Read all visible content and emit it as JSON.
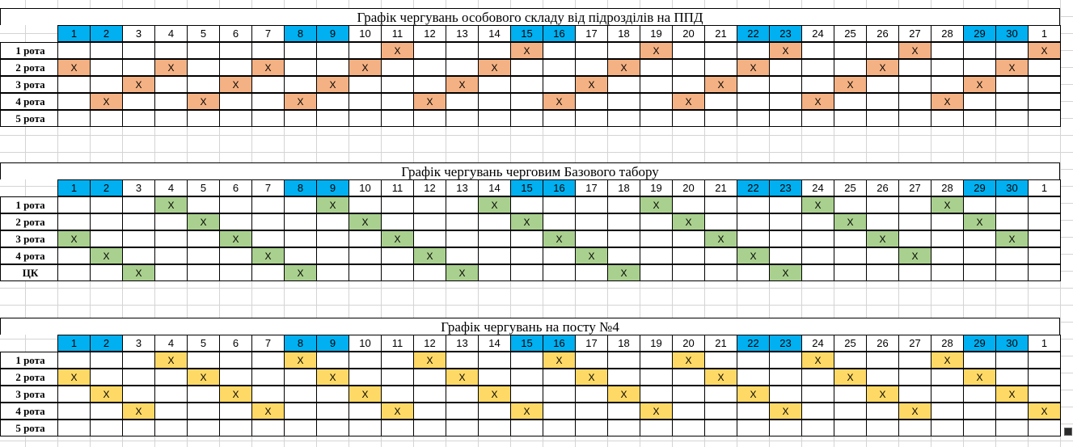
{
  "days": [
    "1",
    "2",
    "3",
    "4",
    "5",
    "6",
    "7",
    "8",
    "9",
    "10",
    "11",
    "12",
    "13",
    "14",
    "15",
    "16",
    "17",
    "18",
    "19",
    "20",
    "21",
    "22",
    "23",
    "24",
    "25",
    "26",
    "27",
    "28",
    "29",
    "30",
    "1"
  ],
  "weekend_columns": [
    0,
    1,
    7,
    8,
    14,
    15,
    21,
    22,
    28,
    29
  ],
  "colors": {
    "weekend_header": "#00b0f0",
    "orange": "#f4b183",
    "green": "#a9d08e",
    "yellow": "#ffd966",
    "grid": "#d4d4d4",
    "border": "#000000"
  },
  "mark": "X",
  "tables": [
    {
      "title": "Графік чергувань особового складу від підрозділів на ППД",
      "mark_color": "orange",
      "rows": [
        {
          "label": "1 рота",
          "marks": [
            10,
            14,
            18,
            22,
            26,
            30
          ]
        },
        {
          "label": "2 рота",
          "marks": [
            0,
            3,
            6,
            9,
            13,
            17,
            21,
            25,
            29
          ]
        },
        {
          "label": "3 рота",
          "marks": [
            2,
            5,
            8,
            12,
            16,
            20,
            24,
            28
          ]
        },
        {
          "label": "4 рота",
          "marks": [
            1,
            4,
            7,
            11,
            15,
            19,
            23,
            27
          ]
        },
        {
          "label": "5 рота",
          "marks": []
        }
      ]
    },
    {
      "title": "Графік чергувань черговим Базового табору",
      "mark_color": "green",
      "rows": [
        {
          "label": "1 рота",
          "marks": [
            3,
            8,
            13,
            18,
            23,
            27
          ]
        },
        {
          "label": "2 рота",
          "marks": [
            4,
            9,
            14,
            19,
            24,
            28
          ]
        },
        {
          "label": "3 рота",
          "marks": [
            0,
            5,
            10,
            15,
            20,
            25,
            29
          ]
        },
        {
          "label": "4 рота",
          "marks": [
            1,
            6,
            11,
            16,
            21,
            26
          ]
        },
        {
          "label": "ЦК",
          "marks": [
            2,
            7,
            12,
            17,
            22
          ]
        }
      ]
    },
    {
      "title": "Графік чергувань на посту №4",
      "mark_color": "yellow",
      "rows": [
        {
          "label": "1 рота",
          "marks": [
            3,
            7,
            11,
            15,
            19,
            23,
            27
          ]
        },
        {
          "label": "2 рота",
          "marks": [
            0,
            4,
            8,
            12,
            16,
            20,
            24,
            28
          ]
        },
        {
          "label": "3 рота",
          "marks": [
            1,
            5,
            9,
            13,
            17,
            21,
            25,
            29
          ]
        },
        {
          "label": "4 рота",
          "marks": [
            2,
            6,
            10,
            14,
            18,
            22,
            26,
            30
          ]
        },
        {
          "label": "5 рота",
          "marks": []
        }
      ]
    }
  ]
}
